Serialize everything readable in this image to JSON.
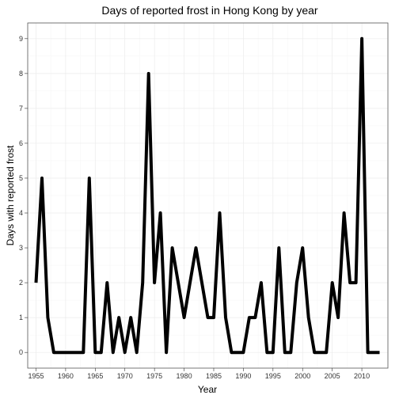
{
  "chart_data": {
    "type": "line",
    "title": "Days of reported frost in Hong Kong by year",
    "xlabel": "Year",
    "ylabel": "Days with reported frost",
    "xlim": [
      1953.6,
      2014.4
    ],
    "ylim": [
      -0.45,
      9.45
    ],
    "x_ticks": [
      1955,
      1960,
      1965,
      1970,
      1975,
      1980,
      1985,
      1990,
      1995,
      2000,
      2005,
      2010
    ],
    "y_ticks": [
      0,
      1,
      2,
      3,
      4,
      5,
      6,
      7,
      8,
      9
    ],
    "grid": true,
    "legend": "none",
    "series_color": "#000000",
    "x": [
      1955,
      1956,
      1957,
      1958,
      1959,
      1960,
      1961,
      1962,
      1963,
      1964,
      1965,
      1966,
      1967,
      1968,
      1969,
      1970,
      1971,
      1972,
      1973,
      1974,
      1975,
      1976,
      1977,
      1978,
      1979,
      1980,
      1981,
      1982,
      1983,
      1984,
      1985,
      1986,
      1987,
      1988,
      1989,
      1990,
      1991,
      1992,
      1993,
      1994,
      1995,
      1996,
      1997,
      1998,
      1999,
      2000,
      2001,
      2002,
      2003,
      2004,
      2005,
      2006,
      2007,
      2008,
      2009,
      2010,
      2011,
      2012,
      2013
    ],
    "y": [
      2,
      5,
      1,
      0,
      0,
      0,
      0,
      0,
      0,
      5,
      0,
      0,
      2,
      0,
      1,
      0,
      1,
      0,
      2,
      8,
      2,
      4,
      0,
      3,
      2,
      1,
      2,
      3,
      2,
      1,
      1,
      4,
      1,
      0,
      0,
      0,
      1,
      1,
      2,
      0,
      0,
      3,
      0,
      0,
      2,
      3,
      1,
      0,
      0,
      0,
      2,
      1,
      4,
      2,
      2,
      9,
      0,
      0,
      0
    ]
  }
}
